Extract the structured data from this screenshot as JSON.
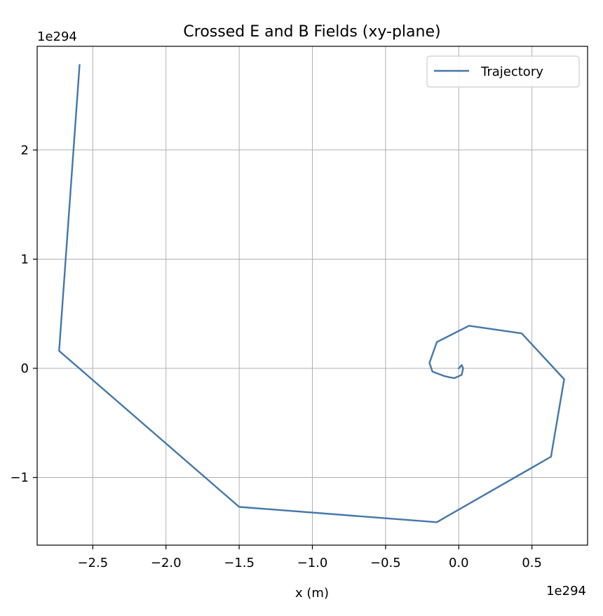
{
  "chart_data": {
    "type": "line",
    "title": "Crossed E and B Fields (xy-plane)",
    "xlabel": "x (m)",
    "ylabel": "",
    "x_offset_label": "1e294",
    "y_offset_label": "1e294",
    "xlim": [
      -2.88,
      0.88
    ],
    "ylim": [
      -1.62,
      2.95
    ],
    "x_ticks": [
      -2.5,
      -2.0,
      -1.5,
      -1.0,
      -0.5,
      0.0,
      0.5
    ],
    "x_tick_labels": [
      "−2.5",
      "−2.0",
      "−1.5",
      "−1.0",
      "−0.5",
      "0.0",
      "0.5"
    ],
    "y_ticks": [
      -1,
      0,
      1,
      2
    ],
    "y_tick_labels": [
      "−1",
      "0",
      "1",
      "2"
    ],
    "grid": true,
    "legend_position": "top-right",
    "series": [
      {
        "name": "Trajectory",
        "color": "#4477aa",
        "x": [
          0.0,
          0.02,
          0.03,
          0.02,
          -0.03,
          -0.07,
          -0.1,
          -0.18,
          -0.2,
          -0.15,
          0.07,
          0.43,
          0.72,
          0.63,
          -0.15,
          -1.5,
          -2.73,
          -2.59
        ],
        "y": [
          0.0,
          0.03,
          0.0,
          -0.06,
          -0.09,
          -0.08,
          -0.07,
          -0.03,
          0.05,
          0.24,
          0.39,
          0.32,
          -0.1,
          -0.81,
          -1.41,
          -1.27,
          0.16,
          2.78
        ]
      }
    ]
  }
}
